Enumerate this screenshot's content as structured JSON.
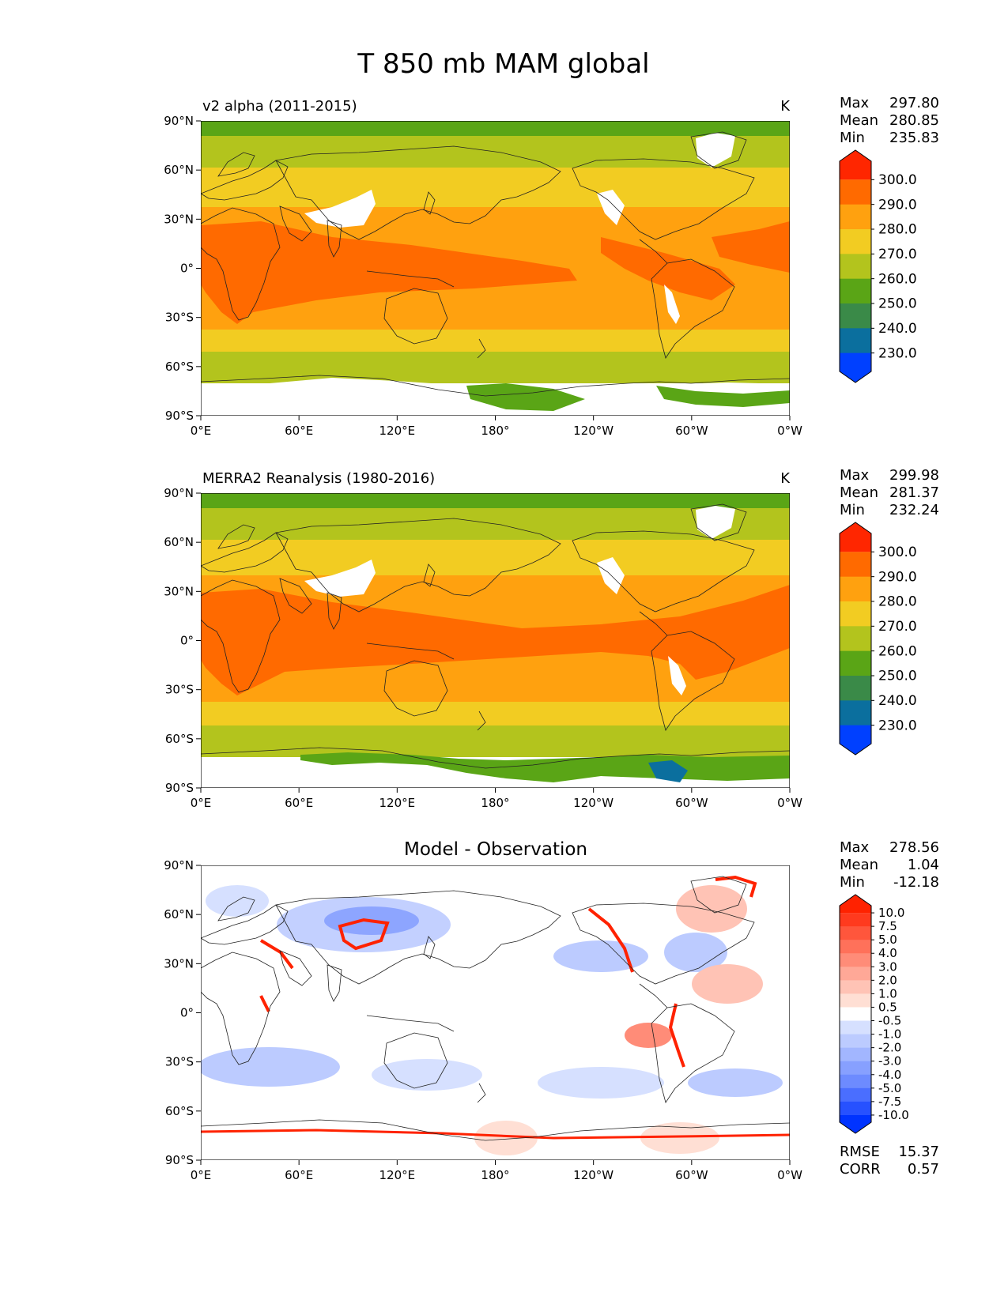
{
  "figure_title": "T 850 mb MAM global",
  "x_ticks": [
    "0°E",
    "60°E",
    "120°E",
    "180°",
    "120°W",
    "60°W",
    "0°W"
  ],
  "y_ticks": [
    "90°N",
    "60°N",
    "30°N",
    "0°",
    "30°S",
    "60°S",
    "90°S"
  ],
  "stats_labels": {
    "max": "Max",
    "mean": "Mean",
    "min": "Min",
    "rmse": "RMSE",
    "corr": "CORR"
  },
  "panels": [
    {
      "id": "test",
      "left_title": "v2 alpha (2011-2015)",
      "right_title": "K",
      "center_title": "",
      "stats": {
        "max": "297.80",
        "mean": "280.85",
        "min": "235.83"
      }
    },
    {
      "id": "reference",
      "left_title": "MERRA2 Reanalysis (1980-2016)",
      "right_title": "K",
      "center_title": "",
      "stats": {
        "max": "299.98",
        "mean": "281.37",
        "min": "232.24"
      }
    },
    {
      "id": "diff",
      "left_title": "",
      "right_title": "",
      "center_title": "Model - Observation",
      "stats": {
        "max": "278.56",
        "mean": "1.04",
        "min": "-12.18"
      },
      "metrics": {
        "rmse": "15.37",
        "corr": "0.57"
      }
    }
  ],
  "colorbars": {
    "temperature": {
      "labels": [
        "300.0",
        "290.0",
        "280.0",
        "270.0",
        "260.0",
        "250.0",
        "240.0",
        "230.0"
      ],
      "colors_top_to_bottom": [
        "#ff2600",
        "#ff6a00",
        "#ffa10f",
        "#f2cc22",
        "#b3c41d",
        "#5aa516",
        "#3a8a48",
        "#0b6f9e",
        "#0040ff"
      ]
    },
    "difference": {
      "labels": [
        "10.0",
        "7.5",
        "5.0",
        "4.0",
        "3.0",
        "2.0",
        "1.0",
        "0.5",
        "-0.5",
        "-1.0",
        "-2.0",
        "-3.0",
        "-4.0",
        "-5.0",
        "-7.5",
        "-10.0"
      ],
      "colors_top_to_bottom": [
        "#ff2200",
        "#ff3a1e",
        "#ff563c",
        "#ff715a",
        "#ff8c78",
        "#ffa897",
        "#ffc3b5",
        "#ffdfd4",
        "#ffffff",
        "#d6e0ff",
        "#bccbff",
        "#a2b6ff",
        "#87a0ff",
        "#6d8bff",
        "#4a6eff",
        "#2751ff",
        "#0033ff"
      ]
    }
  }
}
